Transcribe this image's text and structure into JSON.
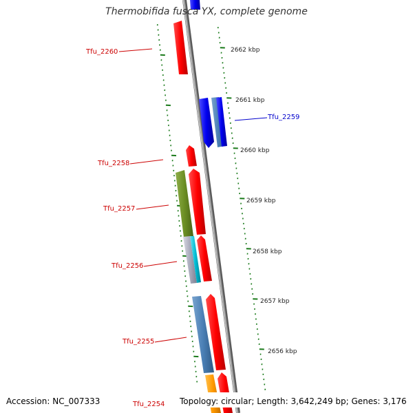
{
  "title": "Thermobifida fusca YX, complete genome",
  "accession_text": "Accession: NC_007333",
  "topology_text": "Topology: circular; Length: 3,642,249 bp; Genes: 3,176",
  "colors": {
    "backbone": "#8a8a8a",
    "tick": "#1a7a1a",
    "label_default": "#cc0000",
    "label_highlight": "#0000cc",
    "gene_red": "#ff0000",
    "gene_blue": "#0000ee",
    "gene_steel": "#4a7fb5",
    "gene_olive": "#6b8e23",
    "gene_cyan": "#00bcd4",
    "gene_orange": "#ff9900"
  },
  "scale": {
    "unit": "kbp",
    "ticks": [
      {
        "kbp": 2662,
        "label": "2662 kbp"
      },
      {
        "kbp": 2661,
        "label": "2661 kbp"
      },
      {
        "kbp": 2660,
        "label": "2660 kbp"
      },
      {
        "kbp": 2659,
        "label": "2659 kbp"
      },
      {
        "kbp": 2658,
        "label": "2658 kbp"
      },
      {
        "kbp": 2657,
        "label": "2657 kbp"
      },
      {
        "kbp": 2656,
        "label": "2656 kbp"
      }
    ]
  },
  "gene_labels": [
    {
      "id": "tfu-2260",
      "text": "Tfu_2260"
    },
    {
      "id": "tfu-2259",
      "text": "Tfu_2259",
      "highlight": true
    },
    {
      "id": "tfu-2258",
      "text": "Tfu_2258"
    },
    {
      "id": "tfu-2257",
      "text": "Tfu_2257"
    },
    {
      "id": "tfu-2256",
      "text": "Tfu_2256"
    },
    {
      "id": "tfu-2255",
      "text": "Tfu_2255"
    },
    {
      "id": "tfu-2254",
      "text": "Tfu_2254"
    }
  ]
}
